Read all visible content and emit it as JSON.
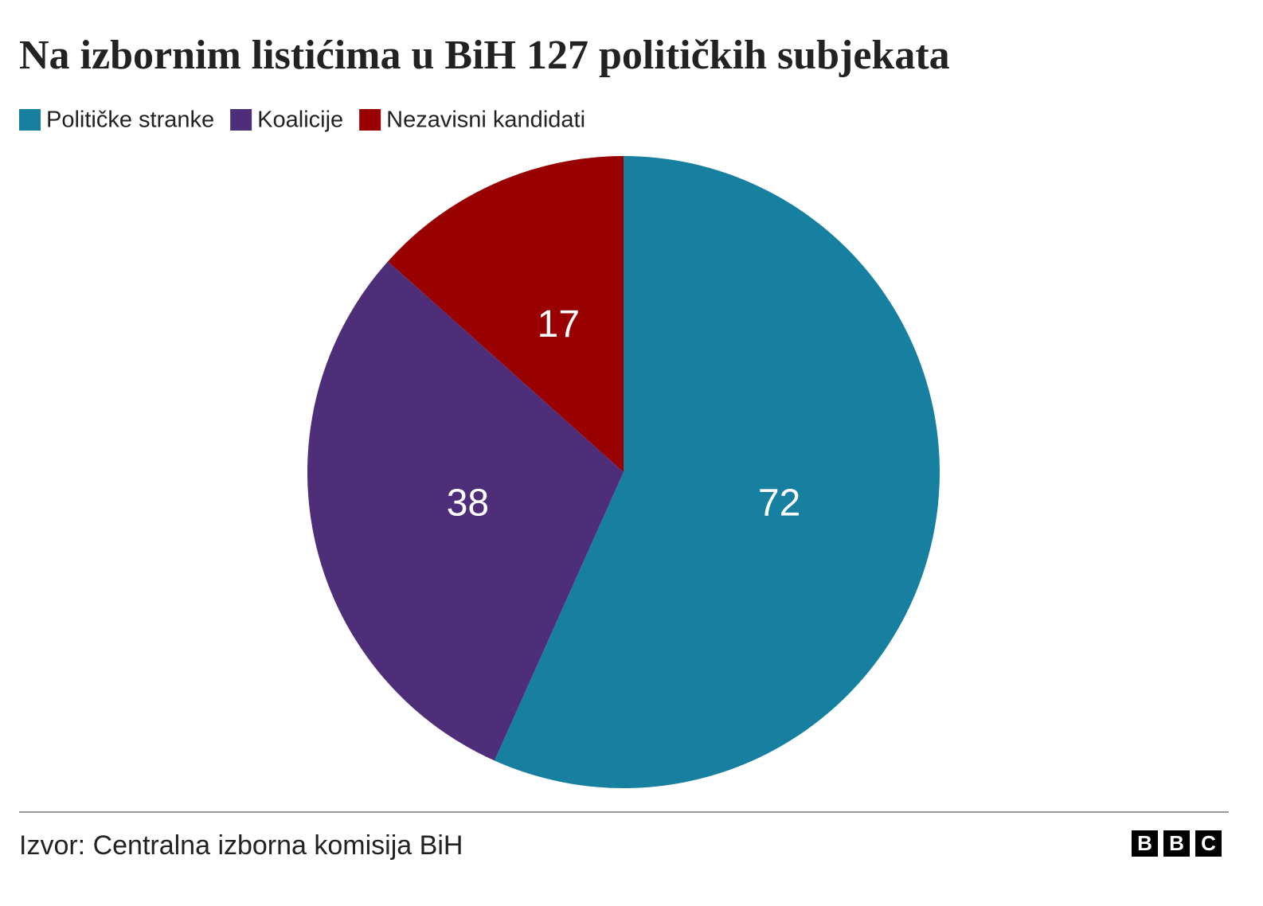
{
  "chart_data": {
    "type": "pie",
    "title": "Na izbornim listićima u BiH 127 političkih subjekata",
    "categories": [
      "Političke stranke",
      "Koalicije",
      "Nezavisni kandidati"
    ],
    "values": [
      72,
      38,
      17
    ],
    "colors": [
      "#1780a1",
      "#4e2e79",
      "#990000"
    ],
    "source": "Izvor: Centralna izborna komisija BiH",
    "logo": [
      "B",
      "B",
      "C"
    ]
  }
}
